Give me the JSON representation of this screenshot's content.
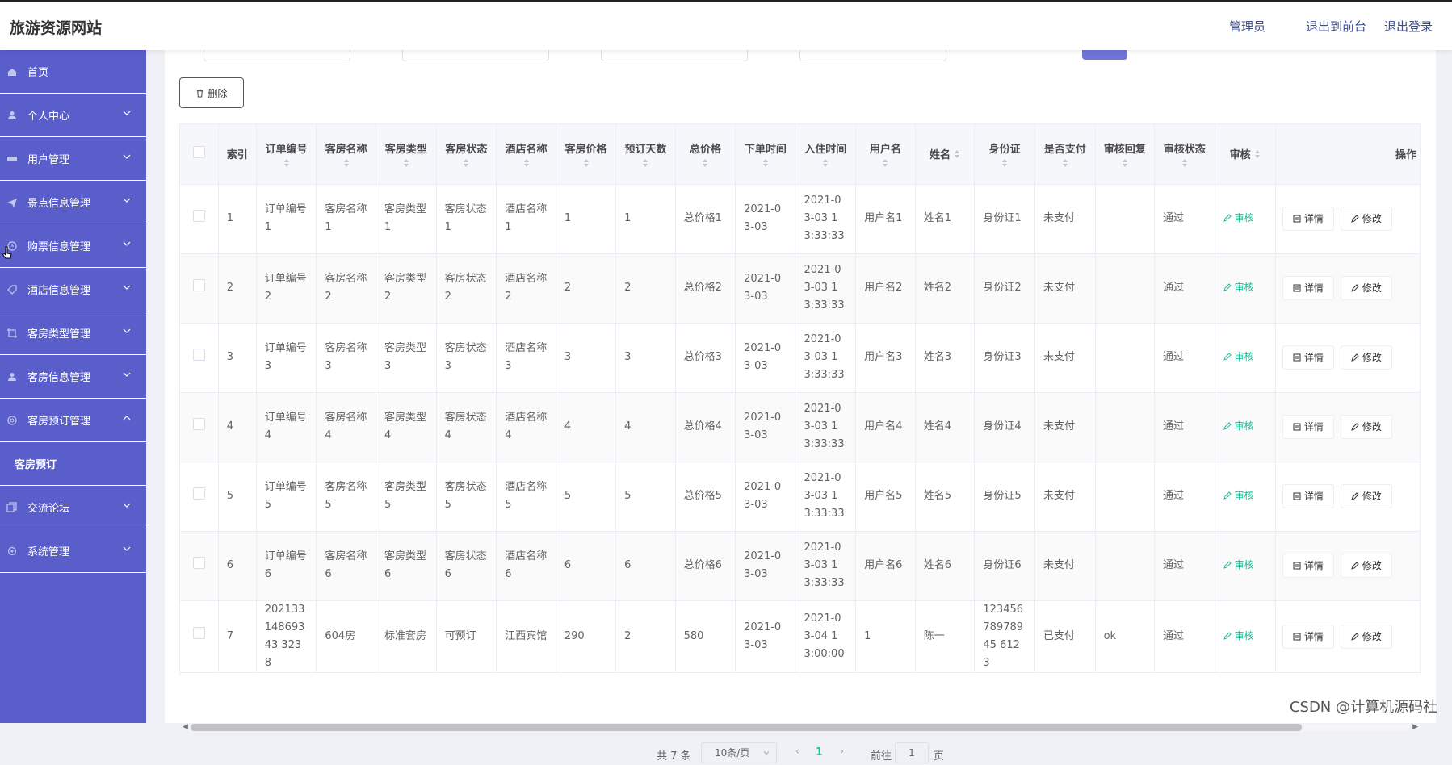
{
  "header": {
    "site_title": "旅游资源网站",
    "links": [
      "管理员",
      "退出到前台",
      "退出登录"
    ]
  },
  "sidebar": {
    "items": [
      {
        "label": "首页",
        "icon": "home-icon",
        "chevron": false
      },
      {
        "label": "个人中心",
        "icon": "user-icon",
        "chevron": true
      },
      {
        "label": "用户管理",
        "icon": "users-icon",
        "chevron": true
      },
      {
        "label": "景点信息管理",
        "icon": "send-icon",
        "chevron": true
      },
      {
        "label": "购票信息管理",
        "icon": "clock-icon",
        "chevron": true
      },
      {
        "label": "酒店信息管理",
        "icon": "tag-icon",
        "chevron": true
      },
      {
        "label": "客房类型管理",
        "icon": "crop-icon",
        "chevron": true
      },
      {
        "label": "客房信息管理",
        "icon": "person-icon",
        "chevron": true
      },
      {
        "label": "客房预订管理",
        "icon": "globe-icon",
        "chevron": "up"
      }
    ],
    "submenu": [
      "客房预订"
    ],
    "items_after": [
      {
        "label": "交流论坛",
        "icon": "copy-icon",
        "chevron": true
      },
      {
        "label": "系统管理",
        "icon": "settings-icon",
        "chevron": true
      }
    ]
  },
  "toolbar": {
    "delete_label": "删除"
  },
  "table": {
    "columns": [
      "索引",
      "订单编号",
      "客房名称",
      "客房类型",
      "客房状态",
      "酒店名称",
      "客房价格",
      "预订天数",
      "总价格",
      "下单时间",
      "入住时间",
      "用户名",
      "姓名",
      "身份证",
      "是否支付",
      "审核回复",
      "审核状态",
      "审核",
      "操作"
    ],
    "rows": [
      [
        "1",
        "订单编号1",
        "客房名称1",
        "客房类型1",
        "客房状态1",
        "酒店名称1",
        "1",
        "1",
        "总价格1",
        "2021-03-03",
        "2021-03-03 13:33:33",
        "用户名1",
        "姓名1",
        "身份证1",
        "未支付",
        "",
        "通过"
      ],
      [
        "2",
        "订单编号2",
        "客房名称2",
        "客房类型2",
        "客房状态2",
        "酒店名称2",
        "2",
        "2",
        "总价格2",
        "2021-03-03",
        "2021-03-03 13:33:33",
        "用户名2",
        "姓名2",
        "身份证2",
        "未支付",
        "",
        "通过"
      ],
      [
        "3",
        "订单编号3",
        "客房名称3",
        "客房类型3",
        "客房状态3",
        "酒店名称3",
        "3",
        "3",
        "总价格3",
        "2021-03-03",
        "2021-03-03 13:33:33",
        "用户名3",
        "姓名3",
        "身份证3",
        "未支付",
        "",
        "通过"
      ],
      [
        "4",
        "订单编号4",
        "客房名称4",
        "客房类型4",
        "客房状态4",
        "酒店名称4",
        "4",
        "4",
        "总价格4",
        "2021-03-03",
        "2021-03-03 13:33:33",
        "用户名4",
        "姓名4",
        "身份证4",
        "未支付",
        "",
        "通过"
      ],
      [
        "5",
        "订单编号5",
        "客房名称5",
        "客房类型5",
        "客房状态5",
        "酒店名称5",
        "5",
        "5",
        "总价格5",
        "2021-03-03",
        "2021-03-03 13:33:33",
        "用户名5",
        "姓名5",
        "身份证5",
        "未支付",
        "",
        "通过"
      ],
      [
        "6",
        "订单编号6",
        "客房名称6",
        "客房类型6",
        "客房状态6",
        "酒店名称6",
        "6",
        "6",
        "总价格6",
        "2021-03-03",
        "2021-03-03 13:33:33",
        "用户名6",
        "姓名6",
        "身份证6",
        "未支付",
        "",
        "通过"
      ],
      [
        "7",
        "20213314869343 3238",
        "604房",
        "标准套房",
        "可预订",
        "江西宾馆",
        "290",
        "2",
        "580",
        "2021-03-03",
        "2021-03-04 13:00:00",
        "1",
        "陈一",
        "12345678978945 6123",
        "已支付",
        "ok",
        "通过"
      ]
    ],
    "audit_label": "审核",
    "detail_label": "详情",
    "edit_label": "修改"
  },
  "pagination": {
    "total_text": "共 7 条",
    "page_size": "10条/页",
    "current_page": "1",
    "goto_label": "前往",
    "goto_value": "1",
    "page_unit": "页"
  },
  "watermark": "CSDN @计算机源码社",
  "colors": {
    "sidebar": "#5a5ecb",
    "accent": "#1dbf9a",
    "header_link": "#3f4d8a"
  }
}
